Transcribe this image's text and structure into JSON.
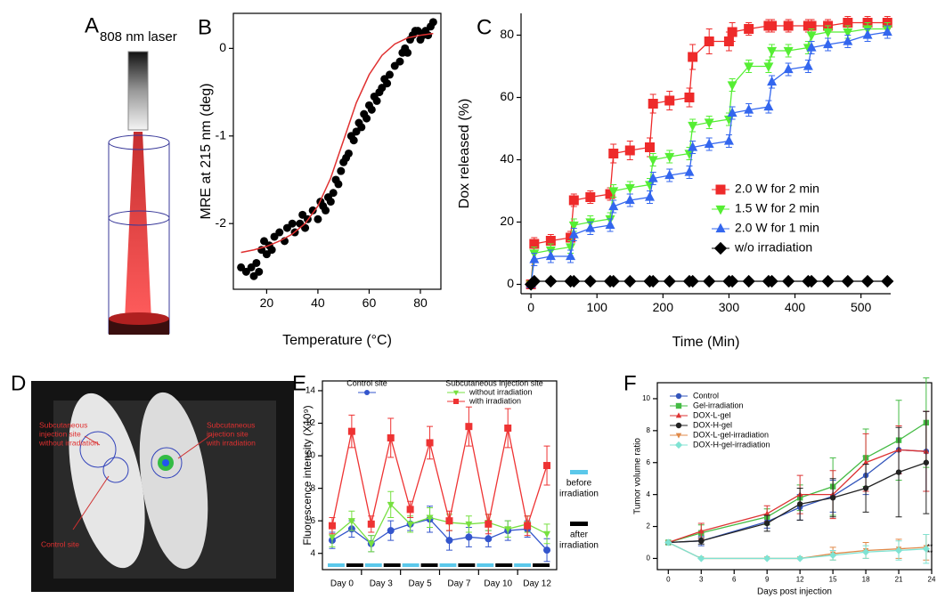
{
  "figure": {
    "panel_a": {
      "letter": "A",
      "label": "808 nm laser"
    },
    "panel_d": {
      "letter": "D",
      "annotations": [
        {
          "lines": [
            "Subcutaneous",
            "injection site",
            "without irradiation"
          ]
        },
        {
          "lines": [
            "Subcutaneous",
            "injection site",
            "with irradiation"
          ]
        },
        {
          "lines": [
            "Control site"
          ]
        }
      ]
    }
  },
  "chart_data": [
    {
      "type": "scatter",
      "panel_label": "B",
      "x_label": "Temperature (°C)",
      "y_label": "MRE at 215 nm (deg)",
      "xlim": [
        7,
        88
      ],
      "ylim": [
        -2.75,
        0.4
      ],
      "xticks": [
        20,
        40,
        60,
        80
      ],
      "yticks": [
        -2,
        -1,
        0
      ],
      "series": [
        {
          "color": "#000000",
          "marker": "circle",
          "line": false,
          "x": [
            10,
            12,
            14,
            15,
            16,
            17,
            18,
            19,
            20,
            21,
            22,
            23,
            25,
            27,
            28,
            30,
            31,
            33,
            34,
            35,
            36,
            38,
            40,
            41,
            42,
            43,
            44,
            45,
            46,
            47,
            48,
            49,
            50,
            51,
            52,
            53,
            54,
            55,
            56,
            57,
            58,
            59,
            60,
            61,
            62,
            63,
            64,
            65,
            66,
            67,
            68,
            70,
            72,
            73,
            74,
            75,
            76,
            77,
            78,
            79,
            80,
            81,
            82,
            83,
            84,
            85
          ],
          "values": [
            -2.5,
            -2.55,
            -2.5,
            -2.6,
            -2.45,
            -2.55,
            -2.3,
            -2.2,
            -2.35,
            -2.25,
            -2.3,
            -2.15,
            -2.1,
            -2.2,
            -2.05,
            -2.0,
            -2.1,
            -2.0,
            -1.9,
            -2.05,
            -1.95,
            -1.85,
            -1.95,
            -1.75,
            -1.8,
            -1.85,
            -1.7,
            -1.75,
            -1.65,
            -1.5,
            -1.55,
            -1.4,
            -1.3,
            -1.25,
            -1.2,
            -1.0,
            -1.05,
            -0.95,
            -0.85,
            -0.9,
            -0.75,
            -0.8,
            -0.65,
            -0.7,
            -0.55,
            -0.6,
            -0.5,
            -0.45,
            -0.35,
            -0.4,
            -0.3,
            -0.2,
            -0.15,
            -0.05,
            0.0,
            -0.05,
            0.1,
            0.15,
            0.2,
            0.2,
            0.1,
            0.15,
            0.2,
            0.15,
            0.25,
            0.3
          ]
        },
        {
          "color": "#e03030",
          "marker": "none",
          "line": true,
          "x": [
            10,
            15,
            20,
            25,
            30,
            35,
            40,
            45,
            50,
            55,
            60,
            65,
            70,
            75,
            80,
            85
          ],
          "values": [
            -2.33,
            -2.3,
            -2.26,
            -2.2,
            -2.12,
            -2.0,
            -1.8,
            -1.48,
            -1.05,
            -0.62,
            -0.3,
            -0.08,
            0.05,
            0.12,
            0.15,
            0.17
          ]
        }
      ]
    },
    {
      "type": "line",
      "panel_label": "C",
      "x_label": "Time (Min)",
      "y_label": "Dox released  (%)",
      "xlim": [
        -15,
        545
      ],
      "ylim": [
        -3,
        87
      ],
      "xticks": [
        0,
        100,
        200,
        300,
        400,
        500
      ],
      "yticks": [
        0,
        20,
        40,
        60,
        80
      ],
      "x": [
        0,
        5,
        30,
        60,
        65,
        90,
        120,
        125,
        150,
        180,
        185,
        210,
        240,
        245,
        270,
        300,
        305,
        330,
        360,
        365,
        390,
        420,
        425,
        450,
        480,
        510,
        540
      ],
      "series": [
        {
          "name": "2.0 W for 2 min",
          "color": "#ee2a2a",
          "marker": "square",
          "line": true,
          "values": [
            0,
            13,
            14,
            15,
            27,
            28,
            29,
            42,
            43,
            44,
            58,
            59,
            60,
            73,
            78,
            78,
            81,
            82,
            83,
            83,
            83,
            83,
            83,
            83,
            84,
            84,
            84
          ],
          "errors": [
            0,
            2,
            2,
            2,
            2,
            2,
            2,
            3,
            3,
            3,
            3,
            3,
            3,
            4,
            4,
            3,
            3,
            2,
            2,
            2,
            2,
            2,
            2,
            2,
            2,
            2,
            2
          ]
        },
        {
          "name": "1.5 W for 2 min",
          "color": "#55ee33",
          "marker": "triangle-down",
          "line": true,
          "values": [
            0,
            10,
            11,
            12,
            19,
            20,
            21,
            30,
            31,
            32,
            40,
            41,
            42,
            51,
            52,
            53,
            64,
            70,
            70,
            75,
            75,
            76,
            80,
            81,
            81,
            82,
            82
          ],
          "errors": [
            0,
            2,
            2,
            2,
            2,
            2,
            2,
            2,
            2,
            2,
            2,
            2,
            2,
            2,
            2,
            2,
            2,
            2,
            2,
            2,
            2,
            2,
            2,
            2,
            2,
            2,
            2
          ]
        },
        {
          "name": "2.0 W for 1 min",
          "color": "#3366ee",
          "marker": "triangle-up",
          "line": true,
          "values": [
            0,
            8,
            9,
            9,
            16,
            18,
            19,
            25,
            27,
            28,
            34,
            35,
            36,
            44,
            45,
            46,
            55,
            56,
            57,
            65,
            69,
            70,
            76,
            77,
            78,
            80,
            81
          ],
          "errors": [
            0,
            2,
            2,
            2,
            2,
            2,
            2,
            2,
            2,
            2,
            2,
            2,
            2,
            2,
            2,
            2,
            2,
            2,
            2,
            2,
            2,
            2,
            2,
            2,
            2,
            2,
            2
          ]
        },
        {
          "name": "w/o irradiation",
          "color": "#000000",
          "marker": "diamond",
          "line": true,
          "values": [
            0,
            1,
            1,
            1,
            1,
            1,
            1,
            1,
            1,
            1,
            1,
            1,
            1,
            1,
            1,
            1,
            1,
            1,
            1,
            1,
            1,
            1,
            1,
            1,
            1,
            1,
            1
          ]
        }
      ]
    },
    {
      "type": "line",
      "panel_label": "E",
      "y_label": "Fluorescence intensity (X10⁹)",
      "legend_title": "Subcutaneous injection site",
      "ylim": [
        3,
        14.6
      ],
      "yticks": [
        4,
        6,
        8,
        10,
        12,
        14
      ],
      "categories": [
        "Day 0",
        null,
        "Day 3",
        null,
        "Day 5",
        null,
        "Day 7",
        null,
        "Day 10",
        null,
        "Day 12",
        null
      ],
      "irradiation_legend": [
        {
          "lines": [
            "before",
            "irradiation"
          ],
          "color": "#5bc8ea"
        },
        {
          "lines": [
            "after",
            "irradiation"
          ],
          "color": "#000000"
        }
      ],
      "series": [
        {
          "name": "Control site",
          "color": "#3355cc",
          "marker": "circle",
          "line": true,
          "values": [
            4.8,
            5.5,
            4.6,
            5.4,
            5.8,
            6.1,
            4.8,
            5.0,
            4.9,
            5.4,
            5.5,
            4.2
          ],
          "errors": [
            0.5,
            0.5,
            0.5,
            0.6,
            0.4,
            0.8,
            0.6,
            0.6,
            0.5,
            0.6,
            0.5,
            0.7
          ]
        },
        {
          "name": "without irradiation",
          "color": "#77e040",
          "marker": "triangle-down",
          "line": true,
          "values": [
            5.0,
            6.0,
            4.6,
            7.0,
            5.8,
            6.2,
            5.9,
            5.8,
            5.9,
            5.5,
            5.8,
            5.2
          ],
          "errors": [
            0.6,
            0.6,
            0.5,
            0.8,
            0.5,
            0.6,
            0.5,
            0.5,
            0.5,
            0.5,
            0.5,
            0.6
          ]
        },
        {
          "name": "with irradiation",
          "color": "#ee3333",
          "marker": "square",
          "line": true,
          "values": [
            5.7,
            11.5,
            5.8,
            11.1,
            6.7,
            10.8,
            6.0,
            11.8,
            5.8,
            11.7,
            5.7,
            9.4
          ],
          "errors": [
            0.5,
            1.0,
            0.5,
            1.2,
            0.5,
            1.0,
            0.6,
            1.2,
            0.6,
            1.2,
            0.6,
            1.2
          ]
        }
      ]
    },
    {
      "type": "line",
      "panel_label": "F",
      "x_label": "Days post injection",
      "y_label": "Tumor volume ratio",
      "xlim": [
        -1,
        24
      ],
      "ylim": [
        -0.7,
        11
      ],
      "xticks": [
        0,
        3,
        6,
        9,
        12,
        15,
        18,
        21,
        24
      ],
      "yticks": [
        0,
        2,
        4,
        6,
        8,
        10
      ],
      "annotations": [
        "**",
        "**"
      ],
      "x": [
        0,
        3,
        9,
        12,
        15,
        18,
        21,
        23.5
      ],
      "series": [
        {
          "name": "Control",
          "color": "#3355bb",
          "marker": "circle",
          "line": true,
          "values": [
            1,
            1.1,
            2.3,
            3.2,
            3.9,
            5.2,
            6.8,
            6.7
          ],
          "errors": [
            0,
            0.3,
            0.4,
            0.8,
            1.0,
            1.2,
            1.5,
            2.5
          ]
        },
        {
          "name": "Gel-irradiation",
          "color": "#44bb44",
          "marker": "square",
          "line": true,
          "values": [
            1,
            1.6,
            2.6,
            3.8,
            4.5,
            6.3,
            7.4,
            8.5
          ],
          "errors": [
            0,
            0.5,
            0.5,
            0.8,
            1.8,
            1.8,
            2.5,
            2.8
          ]
        },
        {
          "name": "DOX-L-gel",
          "color": "#dd3333",
          "marker": "triangle-up",
          "line": true,
          "values": [
            1,
            1.7,
            2.8,
            4.0,
            4.0,
            6.0,
            6.8,
            6.7
          ],
          "errors": [
            0,
            0.5,
            0.5,
            1.2,
            1.5,
            1.8,
            1.5,
            2.5
          ]
        },
        {
          "name": "DOX-H-gel",
          "color": "#222222",
          "marker": "circle",
          "line": true,
          "values": [
            1,
            1.1,
            2.2,
            3.4,
            3.8,
            4.4,
            5.4,
            6.0
          ],
          "errors": [
            0,
            0.2,
            0.5,
            1.0,
            1.2,
            1.5,
            2.8,
            3.2
          ]
        },
        {
          "name": "DOX-L-gel-irradiation",
          "color": "#e08a4a",
          "marker": "triangle-down",
          "line": true,
          "values": [
            1,
            0,
            0,
            0,
            0.3,
            0.5,
            0.6,
            0.7
          ],
          "errors": [
            0,
            0,
            0,
            0,
            0.4,
            0.5,
            0.6,
            0.8
          ]
        },
        {
          "name": "DOX-H-gel-irradiation",
          "color": "#7fe3d3",
          "marker": "diamond",
          "line": true,
          "values": [
            1,
            0,
            0,
            0,
            0.2,
            0.4,
            0.5,
            0.6
          ],
          "errors": [
            0,
            0,
            0,
            0,
            0.3,
            0.4,
            0.6,
            0.9
          ]
        }
      ]
    }
  ]
}
